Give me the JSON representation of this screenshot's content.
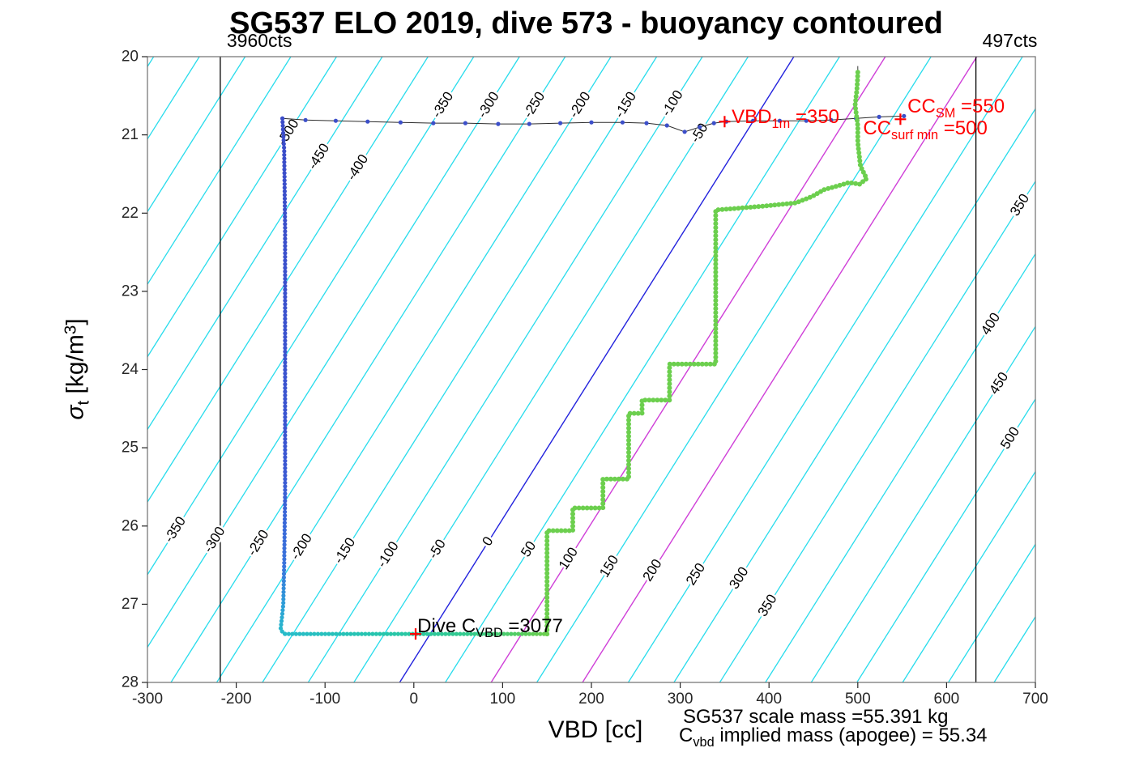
{
  "chart_data": {
    "type": "scatter",
    "title": "SG537 ELO 2019, dive 573 - buoyancy contoured",
    "xlabel": "VBD [cc]",
    "ylabel": "sigma_t [kg/m^3]",
    "ylabel_parts": {
      "sigma": "σ",
      "sub": "t",
      "mid": " [kg/m",
      "sup": "3",
      "end": "]"
    },
    "xlim": [
      -300,
      700
    ],
    "ylim": [
      20,
      28
    ],
    "y_axis_reversed": true,
    "xticks": [
      -300,
      -200,
      -100,
      0,
      100,
      200,
      300,
      400,
      500,
      600,
      700
    ],
    "yticks": [
      20,
      21,
      22,
      23,
      24,
      25,
      26,
      27,
      28
    ],
    "contours": {
      "model": {
        "x_ref": 95,
        "sigma_ref": 26,
        "cc_per_unit": 1.03,
        "dx_dsigma": -55.5
      },
      "min": -700,
      "max": 700,
      "step": 50,
      "zero_contour": 0,
      "magenta_contours": [
        100,
        200
      ],
      "colors": {
        "minor": "#27dcec",
        "zero": "#2222dd",
        "special": "#cf3fd8",
        "label_text": "#000000"
      },
      "labels": [
        {
          "v": -500,
          "s": 20.97
        },
        {
          "v": -450,
          "s": 21.28
        },
        {
          "v": -400,
          "s": 21.42
        },
        {
          "v": -350,
          "s": 20.62
        },
        {
          "v": -300,
          "s": 20.62
        },
        {
          "v": -250,
          "s": 20.62
        },
        {
          "v": -200,
          "s": 20.62
        },
        {
          "v": -150,
          "s": 20.62
        },
        {
          "v": -100,
          "s": 20.6
        },
        {
          "v": -50,
          "s": 20.98
        },
        {
          "v": -350,
          "s": 26.05
        },
        {
          "v": -300,
          "s": 26.18
        },
        {
          "v": -250,
          "s": 26.22
        },
        {
          "v": -200,
          "s": 26.27
        },
        {
          "v": -150,
          "s": 26.32
        },
        {
          "v": -100,
          "s": 26.37
        },
        {
          "v": -50,
          "s": 26.3
        },
        {
          "v": 0,
          "s": 26.2
        },
        {
          "v": 50,
          "s": 26.3
        },
        {
          "v": 100,
          "s": 26.42
        },
        {
          "v": 150,
          "s": 26.52
        },
        {
          "v": 200,
          "s": 26.57
        },
        {
          "v": 250,
          "s": 26.62
        },
        {
          "v": 300,
          "s": 26.67
        },
        {
          "v": 350,
          "s": 27.02
        },
        {
          "v": 350,
          "s": 21.9
        },
        {
          "v": 400,
          "s": 23.42
        },
        {
          "v": 450,
          "s": 24.18
        },
        {
          "v": 500,
          "s": 24.88
        }
      ]
    },
    "ref_lines": [
      {
        "x": -218,
        "label": "3960cts"
      },
      {
        "x": 633,
        "label": "497cts"
      }
    ],
    "traces": {
      "surface": {
        "dot_color": "#3c4fc9",
        "line_color": "#2b2b2b",
        "dot_r": 2.6,
        "points": [
          [
            -148,
            20.79
          ],
          [
            -122,
            20.81
          ],
          [
            -88,
            20.82
          ],
          [
            -52,
            20.83
          ],
          [
            -15,
            20.84
          ],
          [
            22,
            20.85
          ],
          [
            58,
            20.85
          ],
          [
            95,
            20.86
          ],
          [
            130,
            20.86
          ],
          [
            165,
            20.85
          ],
          [
            200,
            20.84
          ],
          [
            235,
            20.84
          ],
          [
            262,
            20.85
          ],
          [
            285,
            20.88
          ],
          [
            305,
            20.96
          ],
          [
            322,
            20.9
          ],
          [
            338,
            20.85
          ],
          [
            352,
            20.83
          ],
          [
            382,
            20.82
          ],
          [
            412,
            20.82
          ],
          [
            442,
            20.82
          ],
          [
            470,
            20.81
          ],
          [
            498,
            20.79
          ],
          [
            524,
            20.77
          ],
          [
            552,
            20.76
          ]
        ]
      },
      "descent": {
        "spacing_px": 4.5,
        "dot_r": 2.6,
        "line_color": "#2b2b2b",
        "color_by": "sigma",
        "color_stops": [
          [
            20.79,
            "#3b4cc8"
          ],
          [
            25.2,
            "#3b57d2"
          ],
          [
            26.5,
            "#3a74dc"
          ],
          [
            27.0,
            "#2f9dd8"
          ],
          [
            27.38,
            "#27bcc9"
          ]
        ],
        "vertices": [
          [
            -148,
            20.79
          ],
          [
            -146,
            21.2
          ],
          [
            -145,
            22.2
          ],
          [
            -145,
            24.0
          ],
          [
            -145,
            25.6
          ],
          [
            -146,
            26.5
          ],
          [
            -147,
            27.0
          ],
          [
            -149,
            27.22
          ],
          [
            -150,
            27.32
          ],
          [
            -147,
            27.37
          ],
          [
            -145,
            27.38
          ]
        ]
      },
      "pump": {
        "spacing_px": 4.5,
        "dot_r": 2.6,
        "color_by": "x",
        "color_stops": [
          [
            -145,
            "#27bcc9"
          ],
          [
            -40,
            "#26c5ad"
          ],
          [
            60,
            "#33ca8d"
          ],
          [
            120,
            "#55cd60"
          ],
          [
            150,
            "#6ccf4e"
          ]
        ],
        "vertices": [
          [
            -145,
            27.38
          ],
          [
            150,
            27.38
          ]
        ]
      },
      "climb": {
        "spacing_px": 5,
        "dot_r": 3,
        "line_color": "#3a3a3a",
        "color_by": "sigma",
        "dots_min_sigma": 20.18,
        "color_stops": [
          [
            27.38,
            "#6ccf4e"
          ],
          [
            27.0,
            "#9ad338"
          ],
          [
            26.5,
            "#c9d724"
          ],
          [
            26.0,
            "#e4da15"
          ],
          [
            25.0,
            "#f0dc0d"
          ],
          [
            20.2,
            "#f6e303"
          ]
        ],
        "vertices": [
          [
            150,
            27.38
          ],
          [
            150,
            26.06
          ],
          [
            179,
            26.06
          ],
          [
            179,
            25.77
          ],
          [
            213,
            25.77
          ],
          [
            213,
            25.4
          ],
          [
            242,
            25.4
          ],
          [
            242,
            24.56
          ],
          [
            257,
            24.56
          ],
          [
            257,
            24.39
          ],
          [
            288,
            24.39
          ],
          [
            288,
            23.93
          ],
          [
            340,
            23.93
          ],
          [
            340,
            21.96
          ],
          [
            374,
            21.93
          ],
          [
            404,
            21.9
          ],
          [
            430,
            21.87
          ],
          [
            448,
            21.79
          ],
          [
            462,
            21.7
          ],
          [
            475,
            21.66
          ],
          [
            490,
            21.61
          ],
          [
            502,
            21.63
          ],
          [
            510,
            21.56
          ],
          [
            503,
            21.4
          ],
          [
            500,
            21.1
          ],
          [
            500,
            20.88
          ],
          [
            497,
            20.62
          ],
          [
            499,
            20.42
          ],
          [
            500,
            20.22
          ],
          [
            500,
            20.12
          ]
        ]
      }
    },
    "plus_markers": {
      "color": "#ff0000",
      "points": [
        [
          350,
          20.83
        ],
        [
          548,
          20.8
        ],
        [
          2,
          27.38
        ]
      ]
    },
    "annotations": [
      {
        "name": "vbd-1m",
        "color": "#ff0000",
        "x": 358,
        "sigma": 20.8,
        "parts": [
          {
            "t": "VBD"
          },
          {
            "t": "1m",
            "sub": true
          },
          {
            "t": " =350"
          }
        ]
      },
      {
        "name": "cc-sm",
        "color": "#ff0000",
        "x": 556,
        "sigma": 20.66,
        "parts": [
          {
            "t": "CC"
          },
          {
            "t": "SM",
            "sub": true
          },
          {
            "t": " =550"
          }
        ]
      },
      {
        "name": "cc-surf-min",
        "color": "#ff0000",
        "x": 506,
        "sigma": 20.94,
        "parts": [
          {
            "t": "CC"
          },
          {
            "t": "surf min",
            "sub": true
          },
          {
            "t": " =500"
          }
        ]
      },
      {
        "name": "dive-c-vbd",
        "color": "#000000",
        "x": 4,
        "sigma": 27.31,
        "parts": [
          {
            "t": "Dive C"
          },
          {
            "t": "VBD",
            "sub": true
          },
          {
            "t": " =3077"
          }
        ]
      }
    ],
    "footer": {
      "line1": "SG537 scale mass =55.391 kg",
      "line2_pre": "C",
      "line2_sub": "vbd",
      "line2_post": " implied mass (apogee) = 55.34"
    }
  }
}
